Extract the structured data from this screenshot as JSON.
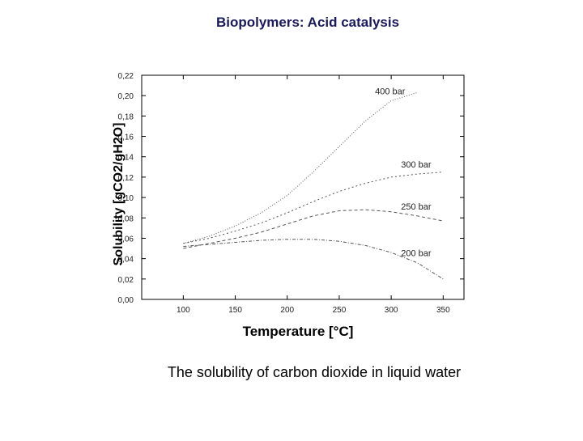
{
  "slide": {
    "title": "Biopolymers: Acid catalysis",
    "caption": "The solubility of carbon dioxide in liquid water"
  },
  "chart_data": {
    "type": "line",
    "title": "",
    "xlabel": "Temperature [°C]",
    "ylabel": "Solubility [gCO2/gH2O]",
    "xlim": [
      60,
      370
    ],
    "ylim": [
      0.0,
      0.22
    ],
    "x_ticks": [
      100,
      150,
      200,
      250,
      300,
      350
    ],
    "y_ticks": [
      "0,00",
      "0,02",
      "0,04",
      "0,06",
      "0,08",
      "0,10",
      "0,12",
      "0,14",
      "0,16",
      "0,18",
      "0,20",
      "0,22"
    ],
    "y_tick_values": [
      0.0,
      0.02,
      0.04,
      0.06,
      0.08,
      0.1,
      0.12,
      0.14,
      0.16,
      0.18,
      0.2,
      0.22
    ],
    "grid": false,
    "series": [
      {
        "name": "400 bar",
        "x": [
          100,
          125,
          150,
          175,
          200,
          225,
          250,
          275,
          300,
          325
        ],
        "y": [
          0.055,
          0.062,
          0.072,
          0.085,
          0.102,
          0.125,
          0.15,
          0.175,
          0.195,
          0.203
        ]
      },
      {
        "name": "300 bar",
        "x": [
          100,
          125,
          150,
          175,
          200,
          225,
          250,
          275,
          300,
          325,
          350
        ],
        "y": [
          0.055,
          0.06,
          0.067,
          0.075,
          0.085,
          0.096,
          0.106,
          0.114,
          0.12,
          0.123,
          0.125
        ]
      },
      {
        "name": "250 bar",
        "x": [
          100,
          125,
          150,
          175,
          200,
          225,
          250,
          275,
          300,
          325,
          350
        ],
        "y": [
          0.05,
          0.055,
          0.06,
          0.066,
          0.074,
          0.082,
          0.087,
          0.088,
          0.086,
          0.082,
          0.077
        ]
      },
      {
        "name": "200 bar",
        "x": [
          100,
          125,
          150,
          175,
          200,
          225,
          250,
          275,
          300,
          325,
          350
        ],
        "y": [
          0.052,
          0.054,
          0.056,
          0.058,
          0.059,
          0.059,
          0.057,
          0.053,
          0.046,
          0.036,
          0.02
        ]
      }
    ],
    "colors": {
      "line": "#555555",
      "axis": "#000000",
      "title": "#1a1a5e"
    }
  }
}
